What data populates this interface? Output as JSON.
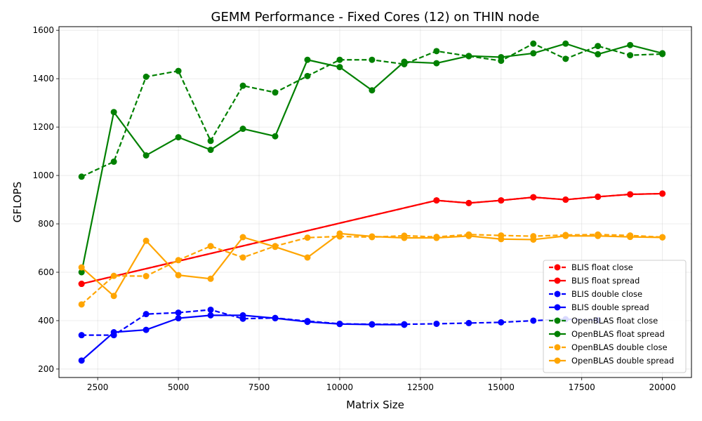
{
  "chart_data": {
    "type": "line",
    "title": "GEMM Performance - Fixed Cores (12) on THIN node",
    "xlabel": "Matrix Size",
    "ylabel": "GFLOPS",
    "xlim": [
      1300,
      20900
    ],
    "ylim": [
      165,
      1615
    ],
    "xticks": [
      2500,
      5000,
      7500,
      10000,
      12500,
      15000,
      17500,
      20000
    ],
    "yticks": [
      200,
      400,
      600,
      800,
      1000,
      1200,
      1400,
      1600
    ],
    "grid": true,
    "legend_position": "lower right",
    "series": [
      {
        "name": "BLIS float close",
        "color": "#ff0000",
        "linestyle": "dashed",
        "x": [
          2000,
          13000,
          14000,
          15000,
          16000,
          17000,
          18000,
          19000,
          20000
        ],
        "y": [
          552,
          897,
          886,
          897,
          910,
          900,
          912,
          922,
          925
        ]
      },
      {
        "name": "BLIS float spread",
        "color": "#ff0000",
        "linestyle": "solid",
        "x": [
          2000,
          13000,
          14000,
          15000,
          16000,
          17000,
          18000,
          19000,
          20000
        ],
        "y": [
          552,
          897,
          886,
          897,
          910,
          900,
          912,
          922,
          925
        ]
      },
      {
        "name": "BLIS double close",
        "color": "#0000ff",
        "linestyle": "dashed",
        "x": [
          2000,
          3000,
          4000,
          5000,
          6000,
          7000,
          8000,
          9000,
          10000,
          11000,
          12000,
          13000,
          14000,
          15000,
          16000,
          17000,
          18000
        ],
        "y": [
          340,
          340,
          427,
          433,
          445,
          408,
          411,
          398,
          387,
          385,
          385,
          387,
          390,
          393,
          400,
          406,
          402
        ]
      },
      {
        "name": "BLIS double spread",
        "color": "#0000ff",
        "linestyle": "solid",
        "x": [
          2000,
          3000,
          4000,
          5000,
          6000,
          7000,
          8000,
          9000,
          10000,
          11000,
          12000
        ],
        "y": [
          235,
          352,
          362,
          410,
          422,
          422,
          410,
          395,
          386,
          384,
          383
        ]
      },
      {
        "name": "OpenBLAS float close",
        "color": "#008000",
        "linestyle": "dashed",
        "x": [
          2000,
          3000,
          4000,
          5000,
          6000,
          7000,
          8000,
          9000,
          10000,
          11000,
          12000,
          13000,
          14000,
          15000,
          16000,
          17000,
          18000,
          19000,
          20000
        ],
        "y": [
          995,
          1057,
          1408,
          1432,
          1143,
          1371,
          1343,
          1411,
          1478,
          1478,
          1460,
          1514,
          1493,
          1474,
          1545,
          1482,
          1535,
          1497,
          1502
        ]
      },
      {
        "name": "OpenBLAS float spread",
        "color": "#008000",
        "linestyle": "solid",
        "x": [
          2000,
          3000,
          4000,
          5000,
          6000,
          7000,
          8000,
          9000,
          10000,
          11000,
          12000,
          13000,
          14000,
          15000,
          16000,
          17000,
          18000,
          19000,
          20000
        ],
        "y": [
          600,
          1262,
          1083,
          1158,
          1106,
          1193,
          1162,
          1478,
          1448,
          1352,
          1470,
          1464,
          1494,
          1489,
          1505,
          1545,
          1501,
          1539,
          1505
        ]
      },
      {
        "name": "OpenBLAS double close",
        "color": "#ffa500",
        "linestyle": "dashed",
        "x": [
          2000,
          3000,
          4000,
          5000,
          6000,
          7000,
          8000,
          9000,
          10000,
          11000,
          12000,
          13000,
          14000,
          15000,
          16000,
          17000,
          18000,
          19000,
          20000
        ],
        "y": [
          467,
          585,
          584,
          650,
          708,
          661,
          708,
          743,
          748,
          745,
          751,
          746,
          756,
          752,
          749,
          754,
          756,
          752,
          745
        ]
      },
      {
        "name": "OpenBLAS double spread",
        "color": "#ffa500",
        "linestyle": "solid",
        "x": [
          2000,
          3000,
          4000,
          5000,
          6000,
          7000,
          8000,
          9000,
          10000,
          11000,
          12000,
          13000,
          14000,
          15000,
          16000,
          17000,
          18000,
          19000,
          20000
        ],
        "y": [
          620,
          502,
          730,
          588,
          573,
          745,
          705,
          661,
          760,
          748,
          742,
          742,
          750,
          737,
          735,
          750,
          750,
          746,
          744
        ]
      }
    ]
  }
}
